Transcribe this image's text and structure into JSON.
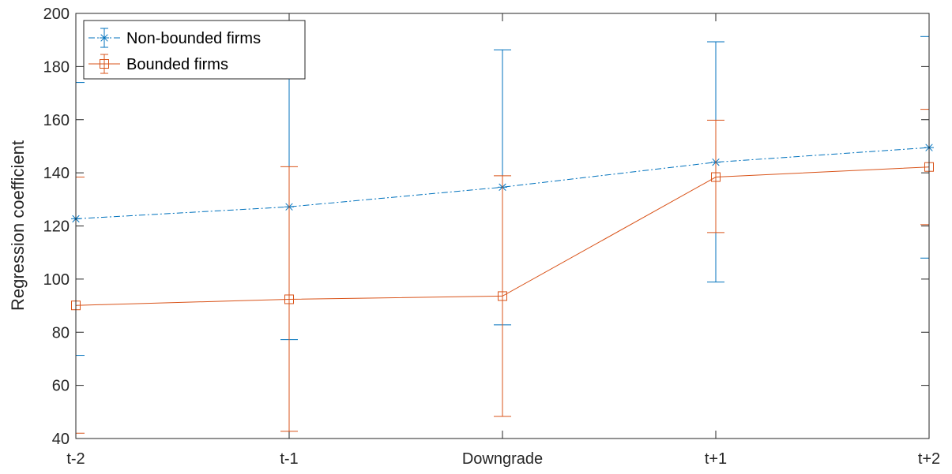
{
  "chart_data": {
    "type": "line",
    "title": "",
    "xlabel": "",
    "ylabel": "Regression coefficient",
    "categories": [
      "t-2",
      "t-1",
      "Downgrade",
      "t+1",
      "t+2"
    ],
    "ylim": [
      40,
      200
    ],
    "yticks": [
      40,
      60,
      80,
      100,
      120,
      140,
      160,
      180,
      200
    ],
    "grid": false,
    "legend_position": "top-left",
    "series": [
      {
        "name": "Non-bounded firms",
        "color": "#0072BD",
        "line_style": "dash-dot",
        "marker": "asterisk",
        "values": [
          122.7,
          127.2,
          134.6,
          144.0,
          149.5
        ],
        "lower": [
          71.3,
          77.2,
          82.8,
          98.9,
          107.9
        ],
        "upper": [
          174.0,
          177.4,
          186.3,
          189.3,
          191.3
        ]
      },
      {
        "name": "Bounded firms",
        "color": "#D95319",
        "line_style": "solid",
        "marker": "square",
        "values": [
          90.1,
          92.4,
          93.6,
          138.4,
          142.2
        ],
        "lower": [
          42.0,
          42.7,
          48.3,
          117.5,
          120.5
        ],
        "upper": [
          138.4,
          142.3,
          138.9,
          159.8,
          163.9
        ]
      }
    ]
  }
}
